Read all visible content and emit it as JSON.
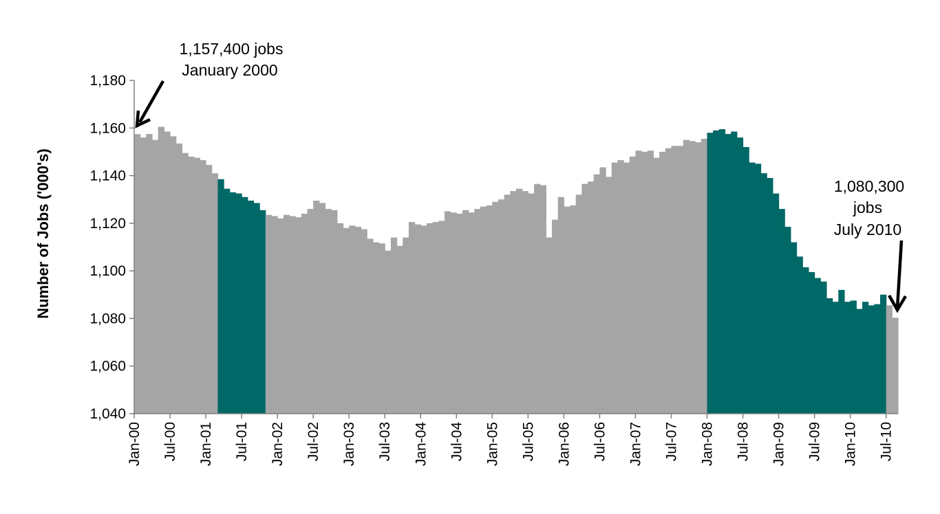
{
  "chart_data": {
    "type": "bar",
    "title": "",
    "xlabel": "",
    "ylabel": "Number of Jobs ('000's)",
    "ylim": [
      1040,
      1180
    ],
    "yticks": [
      "1,040",
      "1,060",
      "1,080",
      "1,100",
      "1,120",
      "1,140",
      "1,160",
      "1,180"
    ],
    "ytick_values": [
      1040,
      1060,
      1080,
      1100,
      1120,
      1140,
      1160,
      1180
    ],
    "xtick_labels": [
      "Jan-00",
      "Jul-00",
      "Jan-01",
      "Jul-01",
      "Jan-02",
      "Jul-02",
      "Jan-03",
      "Jul-03",
      "Jan-04",
      "Jul-04",
      "Jan-05",
      "Jul-05",
      "Jan-06",
      "Jul-06",
      "Jan-07",
      "Jul-07",
      "Jan-08",
      "Jul-08",
      "Jan-09",
      "Jul-09",
      "Jan-10",
      "Jul-10"
    ],
    "grid": false,
    "legend": "none",
    "colors": {
      "normal": "#a6a5a6",
      "recession": "#006866",
      "arrow": "#000000"
    },
    "recession_periods": [
      [
        14,
        22
      ],
      [
        96,
        126
      ]
    ],
    "values": [
      1157.4,
      1156.0,
      1157.5,
      1155.0,
      1160.5,
      1158.5,
      1156.5,
      1153.5,
      1149.5,
      1148.0,
      1147.5,
      1146.5,
      1144.5,
      1141.0,
      1138.5,
      1134.5,
      1133.0,
      1132.5,
      1131.0,
      1129.5,
      1128.5,
      1125.5,
      1123.5,
      1123.0,
      1122.0,
      1123.5,
      1123.0,
      1122.5,
      1124.0,
      1126.0,
      1129.5,
      1128.5,
      1126.0,
      1125.5,
      1120.0,
      1118.0,
      1119.0,
      1118.5,
      1117.5,
      1113.5,
      1112.0,
      1111.5,
      1108.5,
      1114.0,
      1110.5,
      1114.0,
      1120.5,
      1119.5,
      1119.0,
      1120.0,
      1120.5,
      1121.0,
      1125.0,
      1124.5,
      1124.0,
      1125.5,
      1124.5,
      1126.0,
      1127.0,
      1127.5,
      1129.0,
      1130.0,
      1132.0,
      1133.5,
      1134.5,
      1133.5,
      1132.5,
      1136.5,
      1136.0,
      1114.0,
      1121.5,
      1131.0,
      1127.0,
      1127.5,
      1132.0,
      1136.5,
      1137.5,
      1140.5,
      1143.5,
      1139.5,
      1145.5,
      1146.5,
      1145.5,
      1148.0,
      1150.5,
      1150.0,
      1150.5,
      1147.5,
      1150.0,
      1151.5,
      1152.5,
      1152.5,
      1155.0,
      1154.5,
      1154.0,
      1155.5,
      1158.0,
      1159.0,
      1159.5,
      1157.5,
      1158.5,
      1156.0,
      1152.0,
      1145.5,
      1145.0,
      1141.0,
      1139.0,
      1132.5,
      1126.0,
      1118.5,
      1112.0,
      1106.0,
      1101.5,
      1099.5,
      1097.0,
      1095.5,
      1088.5,
      1087.0,
      1092.0,
      1087.0,
      1087.5,
      1084.0,
      1087.0,
      1085.5,
      1086.0,
      1090.0,
      1085.5,
      1080.3
    ]
  },
  "annotations": {
    "start_line1": "1,157,400 jobs",
    "start_line2": "January 2000",
    "end_line1": "1,080,300",
    "end_line2": "jobs",
    "end_line3": "July 2010"
  }
}
